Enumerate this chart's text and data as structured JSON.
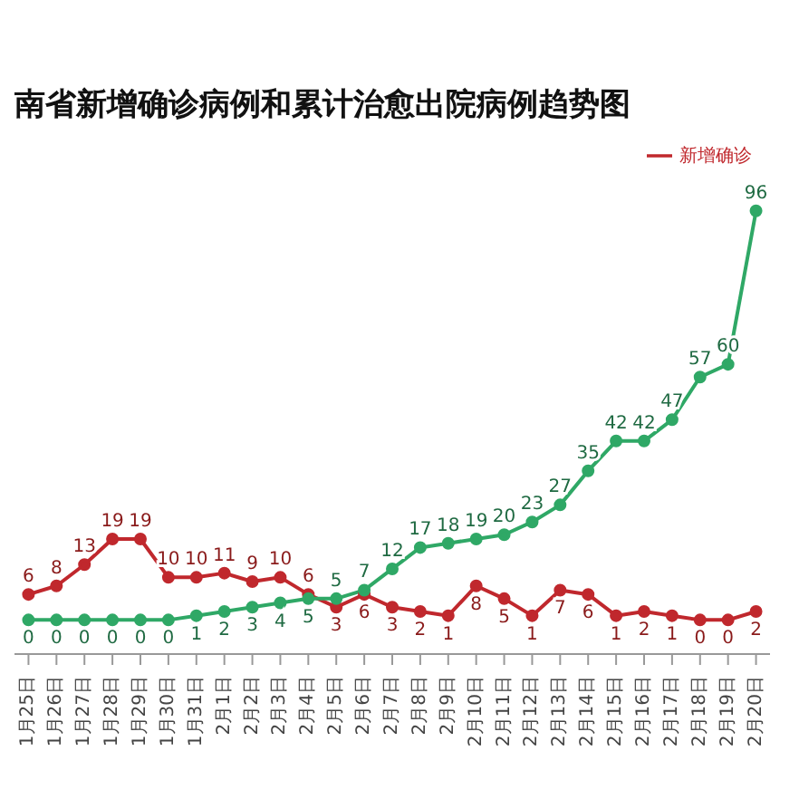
{
  "chart_data": {
    "type": "line",
    "title": "南省新增确诊病例和累计治愈出院病例趋势图",
    "categories": [
      "1月25日",
      "1月26日",
      "1月27日",
      "1月28日",
      "1月29日",
      "1月30日",
      "1月31日",
      "2月1日",
      "2月2日",
      "2月3日",
      "2月4日",
      "2月5日",
      "2月6日",
      "2月7日",
      "2月8日",
      "2月9日",
      "2月10日",
      "2月11日",
      "2月12日",
      "2月13日",
      "2月14日",
      "2月15日",
      "2月16日",
      "2月17日",
      "2月18日",
      "2月19日",
      "2月20日"
    ],
    "series": [
      {
        "name": "新增确诊",
        "color": "#c0282d",
        "values": [
          6,
          8,
          13,
          19,
          19,
          10,
          10,
          11,
          9,
          10,
          6,
          3,
          6,
          3,
          2,
          1,
          8,
          5,
          1,
          7,
          6,
          1,
          2,
          1,
          0,
          0,
          2
        ]
      },
      {
        "color": "#2fa866",
        "values": [
          0,
          0,
          0,
          0,
          0,
          0,
          1,
          2,
          3,
          4,
          5,
          5,
          7,
          12,
          17,
          18,
          19,
          20,
          23,
          27,
          35,
          42,
          42,
          47,
          57,
          60,
          96
        ]
      }
    ],
    "legend": "top right",
    "marker": "circle",
    "data_labels": true
  }
}
